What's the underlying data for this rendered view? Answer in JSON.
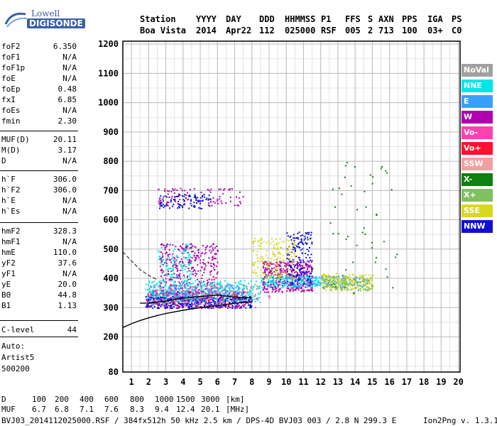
{
  "logo": {
    "line1": "Lowell",
    "line2": "DIGISONDE"
  },
  "header": {
    "row1": [
      "Station",
      "YYYY",
      "DAY",
      "DDD",
      "HHMMSS",
      "P1",
      "FFS",
      "S",
      "AXN",
      "PPS",
      "IGA",
      "PS"
    ],
    "row2": [
      "Boa Vista",
      "2014",
      "Apr22",
      "112",
      "025000",
      "RSF",
      "005",
      "2",
      "713",
      "100",
      "03+",
      "C0"
    ]
  },
  "params": [
    {
      "k": "foF2",
      "v": "6.350"
    },
    {
      "k": "foF1",
      "v": "N/A"
    },
    {
      "k": "foF1p",
      "v": "N/A"
    },
    {
      "k": "foE",
      "v": "N/A"
    },
    {
      "k": "foEp",
      "v": "0.48"
    },
    {
      "k": "fxI",
      "v": "6.85"
    },
    {
      "k": "foEs",
      "v": "N/A"
    },
    {
      "k": "fmin",
      "v": "2.30"
    },
    {
      "k": "MUF(D)",
      "v": "20.11"
    },
    {
      "k": "M(D)",
      "v": "3.17"
    },
    {
      "k": "D",
      "v": "N/A"
    },
    {
      "k": "h`F",
      "v": "306.0"
    },
    {
      "k": "h`F2",
      "v": "306.0"
    },
    {
      "k": "h`E",
      "v": "N/A"
    },
    {
      "k": "h`Es",
      "v": "N/A"
    },
    {
      "k": "hmF2",
      "v": "328.3"
    },
    {
      "k": "hmF1",
      "v": "N/A"
    },
    {
      "k": "hmE",
      "v": "110.0"
    },
    {
      "k": "yF2",
      "v": "37.6"
    },
    {
      "k": "yF1",
      "v": "N/A"
    },
    {
      "k": "yE",
      "v": "20.0"
    },
    {
      "k": "B0",
      "v": "44.8"
    },
    {
      "k": "B1",
      "v": "1.13"
    },
    {
      "k": "C-level",
      "v": "44"
    }
  ],
  "auto_notes": [
    "Auto:",
    "Artist5",
    "500200"
  ],
  "legend": [
    {
      "label": "NoVal",
      "color": "#a0a0a0"
    },
    {
      "label": "NNE",
      "color": "#00e5e5"
    },
    {
      "label": "E",
      "color": "#3aa0ff"
    },
    {
      "label": "W",
      "color": "#b000b0"
    },
    {
      "label": "Vo-",
      "color": "#ff40b0"
    },
    {
      "label": "Vo+",
      "color": "#ff1030"
    },
    {
      "label": "SSW",
      "color": "#f0a0a0"
    },
    {
      "label": "X-",
      "color": "#108010"
    },
    {
      "label": "X+",
      "color": "#80c060"
    },
    {
      "label": "SSE",
      "color": "#d8d820"
    },
    {
      "label": "NNW",
      "color": "#1010d0"
    }
  ],
  "muf_table": {
    "d_label": "D",
    "d_values": [
      "100",
      "200",
      "400",
      "600",
      "800",
      "1000",
      "1500",
      "3000"
    ],
    "d_unit": "[km]",
    "muf_label": "MUF",
    "muf_values": [
      "6.7",
      "6.8",
      "7.1",
      "7.6",
      "8.3",
      "9.4",
      "12.4",
      "20.1"
    ],
    "muf_unit": "[MHz]"
  },
  "footer": {
    "left": "BVJ03_2014112025000.RSF / 384fx512h 50 kHz 2.5 km / DPS-4D BVJ03 003 / 2.8 N 299.3 E",
    "right": "Ion2Png v. 1.3.17"
  },
  "chart_data": {
    "type": "scatter",
    "title": "",
    "xlabel": "",
    "ylabel": "",
    "xlim": [
      0.5,
      20.1
    ],
    "ylim": [
      80,
      1210
    ],
    "x_ticks": [
      1,
      2,
      3,
      4,
      5,
      6,
      7,
      8,
      9,
      10,
      11,
      12,
      13,
      14,
      15,
      16,
      17,
      18,
      19,
      20
    ],
    "y_ticks": [
      80,
      200,
      300,
      400,
      500,
      600,
      700,
      800,
      900,
      1000,
      1100,
      1200
    ],
    "grid": true,
    "legend_position": "right",
    "series": [
      {
        "name": "W",
        "color": "#b000b0",
        "clusters": [
          {
            "x": [
              1.8,
              7.6
            ],
            "y": [
              300,
              360
            ],
            "n": 420
          },
          {
            "x": [
              2.6,
              6.0
            ],
            "y": [
              330,
              520
            ],
            "n": 380
          },
          {
            "x": [
              8.6,
              11.5
            ],
            "y": [
              355,
              460
            ],
            "n": 420
          },
          {
            "x": [
              2.5,
              7.5
            ],
            "y": [
              650,
              710
            ],
            "n": 90
          }
        ]
      },
      {
        "name": "NNE",
        "color": "#00e5e5",
        "clusters": [
          {
            "x": [
              1.8,
              8.5
            ],
            "y": [
              320,
              395
            ],
            "n": 380
          },
          {
            "x": [
              2.5,
              4.5
            ],
            "y": [
              400,
              520
            ],
            "n": 90
          },
          {
            "x": [
              8.5,
              12.0
            ],
            "y": [
              370,
              410
            ],
            "n": 160
          }
        ]
      },
      {
        "name": "E",
        "color": "#3aa0ff",
        "clusters": [
          {
            "x": [
              2.0,
              7.5
            ],
            "y": [
              310,
              380
            ],
            "n": 250
          },
          {
            "x": [
              10.0,
              14.5
            ],
            "y": [
              370,
              410
            ],
            "n": 120
          }
        ]
      },
      {
        "name": "NNW",
        "color": "#1010d0",
        "clusters": [
          {
            "x": [
              1.8,
              8.0
            ],
            "y": [
              300,
              340
            ],
            "n": 250
          },
          {
            "x": [
              10.0,
              11.5
            ],
            "y": [
              380,
              560
            ],
            "n": 160
          },
          {
            "x": [
              2.6,
              5.6
            ],
            "y": [
              640,
              690
            ],
            "n": 90
          }
        ]
      },
      {
        "name": "SSE",
        "color": "#d8d820",
        "clusters": [
          {
            "x": [
              8.0,
              10.5
            ],
            "y": [
              400,
              540
            ],
            "n": 170
          },
          {
            "x": [
              12.0,
              15.0
            ],
            "y": [
              360,
              420
            ],
            "n": 160
          }
        ]
      },
      {
        "name": "X+",
        "color": "#80c060",
        "clusters": [
          {
            "x": [
              12.0,
              15.0
            ],
            "y": [
              360,
              410
            ],
            "n": 160
          }
        ]
      },
      {
        "name": "X-",
        "color": "#108010",
        "clusters": [
          {
            "x": [
              12.5,
              16.5
            ],
            "y": [
              350,
              800
            ],
            "n": 50
          }
        ]
      },
      {
        "name": "NoVal",
        "color": "#a0a0a0",
        "clusters": [
          {
            "x": [
              2.0,
              8.5
            ],
            "y": [
              320,
              380
            ],
            "n": 100
          }
        ]
      },
      {
        "name": "Vo-",
        "color": "#ff40b0",
        "clusters": [
          {
            "x": [
              3.0,
              9.0
            ],
            "y": [
              300,
              380
            ],
            "n": 40
          }
        ]
      },
      {
        "name": "Vo+",
        "color": "#ff1030",
        "clusters": [
          {
            "x": [
              2.0,
              7.5
            ],
            "y": [
              300,
              350
            ],
            "n": 40
          }
        ]
      },
      {
        "name": "SSW",
        "color": "#f0a0a0",
        "clusters": [
          {
            "x": [
              2.0,
              8.0
            ],
            "y": [
              310,
              380
            ],
            "n": 30
          }
        ]
      }
    ],
    "ordinary_trace": {
      "color": "#000000",
      "x": [
        1.5,
        2.0,
        3.0,
        4.0,
        5.0,
        6.0,
        7.0,
        8.0
      ],
      "y": [
        315,
        316,
        322,
        333,
        338,
        343,
        336,
        333
      ]
    },
    "model_profile": {
      "color": "#000000",
      "x": [
        0.5,
        1.0,
        1.5,
        2.0,
        2.5,
        3.0,
        4.0,
        5.0,
        6.0,
        7.0,
        8.0
      ],
      "y": [
        232,
        245,
        256,
        265,
        273,
        280,
        291,
        300,
        307,
        315,
        320
      ]
    },
    "model_profile_dashed": {
      "color": "#333333",
      "x": [
        0.5,
        1.0,
        1.5,
        2.0,
        2.5
      ],
      "y": [
        490,
        460,
        430,
        410,
        395
      ]
    }
  }
}
